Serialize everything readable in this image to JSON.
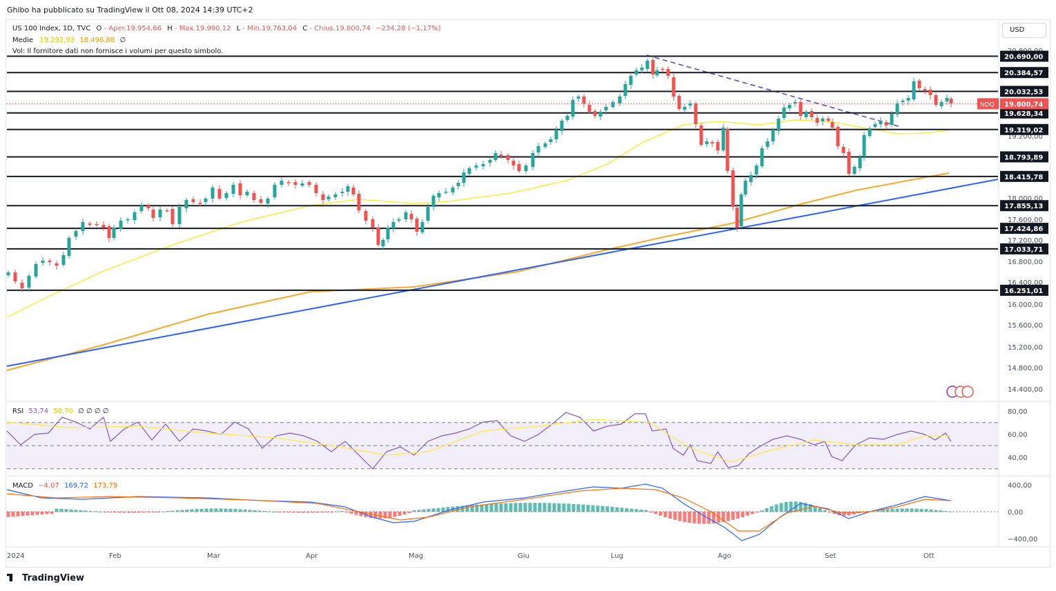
{
  "header": {
    "publisher": "Ghibo ha pubblicato su TradingView il Ott 08, 2024 14:39 UTC+2"
  },
  "legend": {
    "title": "US 100 Index, 1D, TVC",
    "open_label": "O",
    "open_value": "- Aper.19.954,66",
    "high_label": "H",
    "high_value": "- Max.19.990,12",
    "low_label": "L",
    "low_value": "- Min.19.763,04",
    "close_label": "C",
    "close_value": "- Chius.19.800,74",
    "change": "−234,28 (−1,17%)",
    "ma_label": "Medie",
    "ma1_value": "19.292,93",
    "ma2_value": "18.496,88",
    "ma_extra": "∅",
    "vol_text": "Vol: Il fornitore dati non fornisce i volumi per questo simbolo."
  },
  "currency": "USD",
  "price_axis": {
    "ticks": [
      "20.800,00",
      "19.200,00",
      "18.000,00",
      "17.600,00",
      "17.200,00",
      "16.800,00",
      "16.400,00",
      "16.000,00",
      "15.600,00",
      "15.200,00",
      "14.800,00",
      "14.400,00"
    ],
    "level_labels": [
      "20.690,00",
      "20.384,57",
      "20.032,53",
      "19.628,34",
      "19.319,02",
      "18.793,89",
      "18.415,78",
      "17.855,13",
      "17.424,86",
      "17.033,71",
      "16.251,01"
    ],
    "symbol_tag": "NDQ",
    "last_price": "19.800,74"
  },
  "time_axis": {
    "labels": [
      "2024",
      "Feb",
      "Mar",
      "Apr",
      "Mag",
      "Giu",
      "Lug",
      "Ago",
      "Set",
      "Ott"
    ]
  },
  "rsi": {
    "label": "RSI",
    "value": "53,74",
    "ma_value": "58,70",
    "extra": "∅ ∅ ∅ ∅",
    "ticks": [
      "80,00",
      "60,00",
      "40,00"
    ]
  },
  "macd": {
    "label": "MACD",
    "hist_value": "−4,07",
    "macd_value": "169,72",
    "signal_value": "173,79",
    "ticks": [
      "400,00",
      "0,00",
      "−400,00"
    ]
  },
  "colors": {
    "up": "#26a69a",
    "down": "#ef5350",
    "ma_fast": "#ffeb3b",
    "ma_slow": "#ffa726",
    "trend": "#2962ff",
    "dashed_trend": "#5b4bc4",
    "rsi_line": "#7e57c2",
    "macd_line": "#2962ff",
    "signal_line": "#ff6d00"
  },
  "chart_data": {
    "type": "candlestick",
    "title": "US 100 Index, 1D, TVC",
    "time_range": [
      "2024",
      "Ott"
    ],
    "horizontal_levels": [
      20690.0,
      20384.57,
      20032.53,
      19628.34,
      19319.02,
      18793.89,
      18415.78,
      17855.13,
      17424.86,
      17033.71,
      16251.01
    ],
    "last_close": 19800.74,
    "ohlc_last": {
      "open": 19954.66,
      "high": 19990.12,
      "low": 19763.04,
      "close": 19800.74,
      "change": -234.28,
      "change_pct": -1.17
    },
    "moving_averages": [
      {
        "value": 19292.93
      },
      {
        "value": 18496.88
      }
    ],
    "rsi": {
      "value": 53.74,
      "ma": 58.7,
      "levels": [
        70,
        50,
        30
      ]
    },
    "macd": {
      "histogram": -4.07,
      "macd": 169.72,
      "signal": 173.79
    }
  }
}
